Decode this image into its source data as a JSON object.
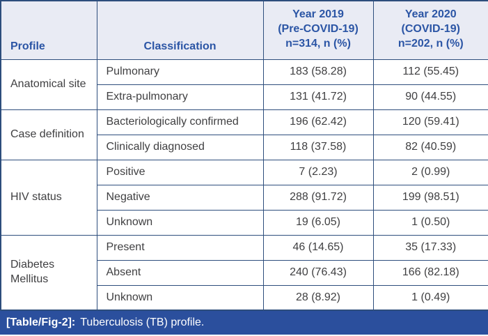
{
  "header": {
    "profile": "Profile",
    "classification": "Classification",
    "year2019": "Year 2019\n(Pre-COVID-19)\nn=314, n (%)",
    "year2020": "Year 2020\n(COVID-19)\nn=202, n (%)"
  },
  "groups": [
    {
      "profile": "Anatomical site",
      "rows": [
        {
          "classification": "Pulmonary",
          "y2019": "183 (58.28)",
          "y2020": "112 (55.45)"
        },
        {
          "classification": "Extra-pulmonary",
          "y2019": "131 (41.72)",
          "y2020": "90 (44.55)"
        }
      ]
    },
    {
      "profile": "Case definition",
      "rows": [
        {
          "classification": "Bacteriologically confirmed",
          "y2019": "196 (62.42)",
          "y2020": "120 (59.41)"
        },
        {
          "classification": "Clinically diagnosed",
          "y2019": "118 (37.58)",
          "y2020": "82 (40.59)"
        }
      ]
    },
    {
      "profile": "HIV status",
      "rows": [
        {
          "classification": "Positive",
          "y2019": "7 (2.23)",
          "y2020": "2 (0.99)"
        },
        {
          "classification": "Negative",
          "y2019": "288 (91.72)",
          "y2020": "199 (98.51)"
        },
        {
          "classification": "Unknown",
          "y2019": "19 (6.05)",
          "y2020": "1 (0.50)"
        }
      ]
    },
    {
      "profile": "Diabetes Mellitus",
      "rows": [
        {
          "classification": "Present",
          "y2019": "46 (14.65)",
          "y2020": "35 (17.33)"
        },
        {
          "classification": "Absent",
          "y2019": "240 (76.43)",
          "y2020": "166 (82.18)"
        },
        {
          "classification": "Unknown",
          "y2019": "28 (8.92)",
          "y2020": "1 (0.49)"
        }
      ]
    }
  ],
  "caption": {
    "label": "[Table/Fig-2]:",
    "text": "Tuberculosis (TB) profile."
  },
  "colors": {
    "border": "#2d4d7c",
    "header_bg": "#e9ebf4",
    "header_text": "#2b55a5",
    "body_text": "#3f3f41",
    "caption_bg": "#2b4f9d",
    "caption_text": "#ffffff"
  }
}
